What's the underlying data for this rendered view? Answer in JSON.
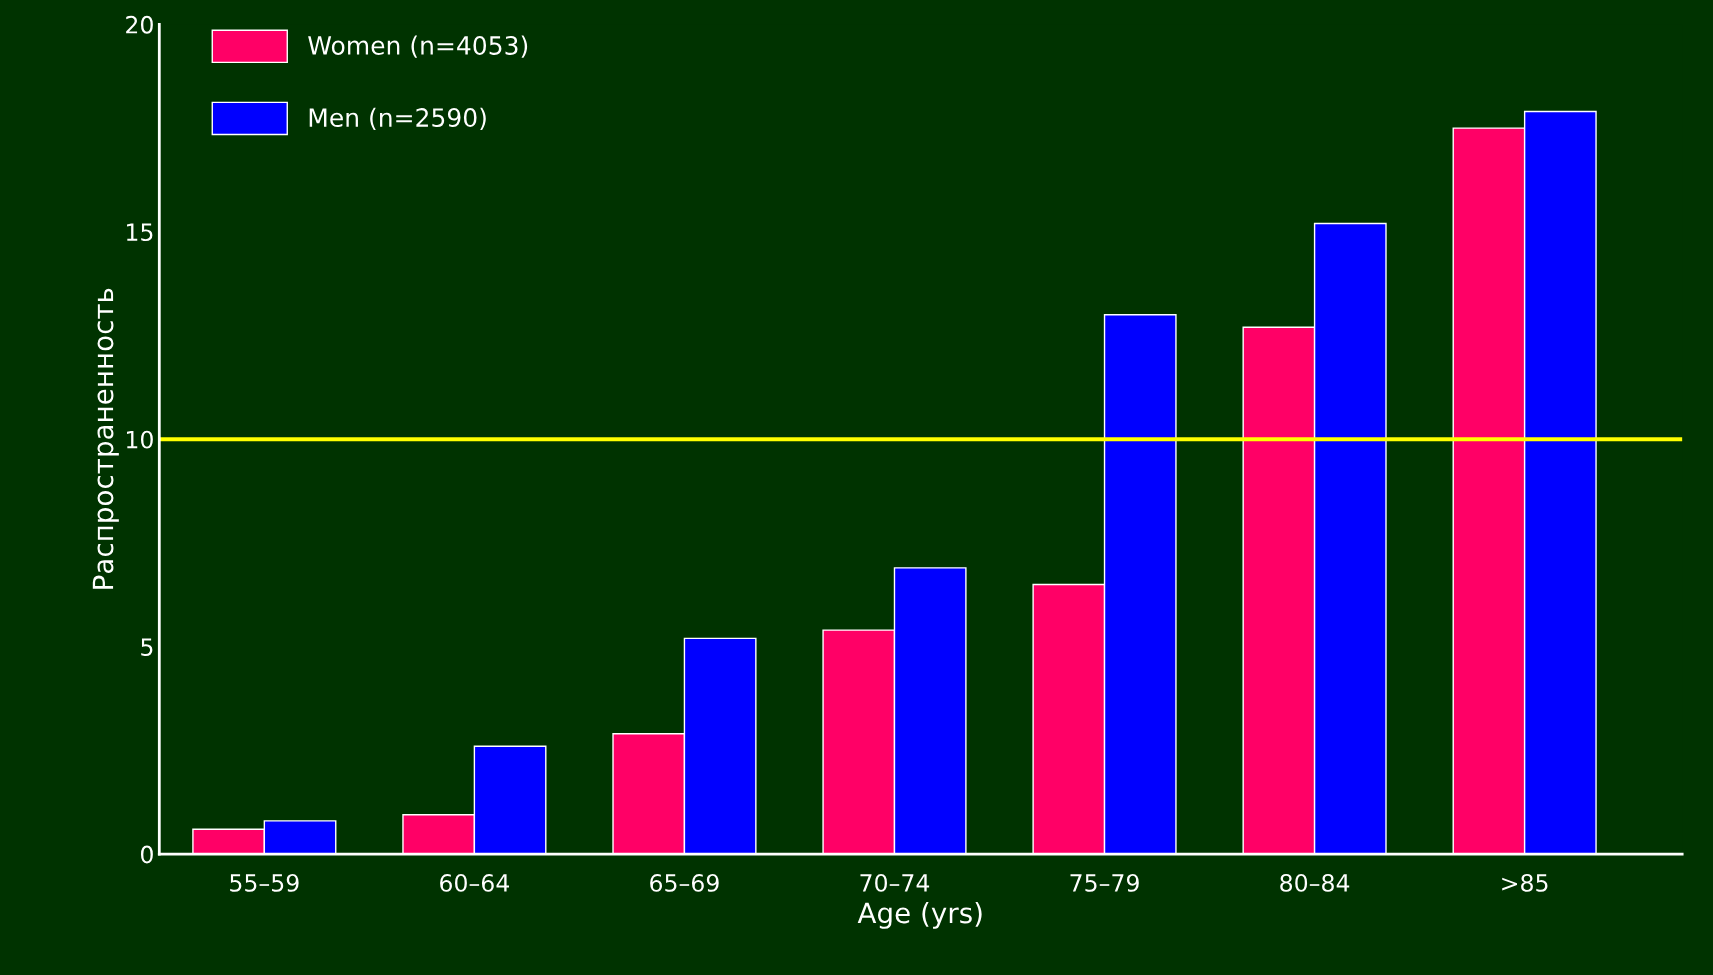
{
  "chart_data": {
    "type": "bar",
    "xlabel": "Age (yrs)",
    "ylabel": "Распространенность",
    "categories": [
      "55–59",
      "60–64",
      "65–69",
      "70–74",
      "75–79",
      "80–84",
      ">85"
    ],
    "series": [
      {
        "name": "Women (n=4053)",
        "color": "#ff0066",
        "values": [
          0.6,
          0.95,
          2.9,
          5.4,
          6.5,
          12.7,
          17.5
        ]
      },
      {
        "name": "Men (n=2590)",
        "color": "#0000ff",
        "values": [
          0.8,
          2.6,
          5.2,
          6.9,
          13.0,
          15.2,
          17.9
        ]
      }
    ],
    "ylim": [
      0,
      20
    ],
    "yticks": [
      0,
      5,
      10,
      15,
      20
    ],
    "ref_lines": [
      {
        "axis": "y",
        "value": 10,
        "color": "#ffff00",
        "line_style": "solid"
      }
    ],
    "legend": "top left",
    "grid": false
  }
}
